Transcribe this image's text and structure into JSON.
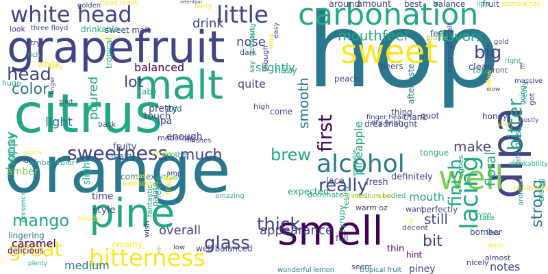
{
  "palette": {
    "deep_purple": "#440154",
    "indigo": "#414487",
    "blue": "#2a788e",
    "teal": "#22a884",
    "green": "#7ad151",
    "yellow": "#fde725",
    "slate": "#355f8d"
  },
  "words": [
    {
      "text": "hop"
    },
    {
      "text": "grapefruit"
    },
    {
      "text": "citrus"
    },
    {
      "text": "orange"
    },
    {
      "text": "malt"
    },
    {
      "text": "carbonation"
    },
    {
      "text": "sweet"
    },
    {
      "text": "pine"
    },
    {
      "text": "smell"
    },
    {
      "text": "dipa"
    },
    {
      "text": "well"
    },
    {
      "text": "alcohol"
    },
    {
      "text": "bitterness"
    },
    {
      "text": "sweetness"
    },
    {
      "text": "white head"
    },
    {
      "text": "little"
    },
    {
      "text": "head"
    },
    {
      "text": "lacing"
    },
    {
      "text": "bitter"
    },
    {
      "text": "finish"
    },
    {
      "text": "mango"
    },
    {
      "text": "thick"
    },
    {
      "text": "glass"
    },
    {
      "text": "great"
    },
    {
      "text": "really"
    },
    {
      "text": "big"
    },
    {
      "text": "mouthfeel"
    },
    {
      "text": "flavors"
    },
    {
      "text": "floral"
    },
    {
      "text": "strong"
    },
    {
      "text": "color"
    },
    {
      "text": "lot"
    },
    {
      "text": "much"
    },
    {
      "text": "first"
    },
    {
      "text": "smooth"
    },
    {
      "text": "brew"
    },
    {
      "text": "make"
    },
    {
      "text": "drink"
    },
    {
      "text": "nose"
    },
    {
      "text": "balanced"
    },
    {
      "text": "slightly"
    },
    {
      "text": "light"
    },
    {
      "text": "poured"
    },
    {
      "text": "hoppy"
    },
    {
      "text": "sticky"
    },
    {
      "text": "amber"
    },
    {
      "text": "overall"
    },
    {
      "text": "appearance"
    },
    {
      "text": "bit"
    },
    {
      "text": "still"
    },
    {
      "text": "caramel"
    },
    {
      "text": "medium"
    },
    {
      "text": "notes"
    },
    {
      "text": "pineapple"
    },
    {
      "text": "quite"
    },
    {
      "text": "mouth"
    },
    {
      "text": "time"
    },
    {
      "text": "style"
    },
    {
      "text": "slight"
    },
    {
      "text": "ipa"
    },
    {
      "text": "enough"
    },
    {
      "text": "fruity"
    },
    {
      "text": "definitely"
    },
    {
      "text": "lace"
    },
    {
      "text": "fresh"
    },
    {
      "text": "piney"
    },
    {
      "text": "full"
    },
    {
      "text": "thin"
    },
    {
      "text": "hint"
    },
    {
      "text": "bomber"
    },
    {
      "text": "malty"
    },
    {
      "text": "complex"
    },
    {
      "text": "amazing"
    },
    {
      "text": "delicious"
    },
    {
      "text": "creamy"
    },
    {
      "text": "lingering"
    },
    {
      "text": "well balanced"
    },
    {
      "text": "tropical fruit"
    },
    {
      "text": "lemon"
    },
    {
      "text": "wonderful"
    },
    {
      "text": "pretty"
    },
    {
      "text": "touch"
    },
    {
      "text": "sweet malt"
    },
    {
      "text": "three floyd"
    },
    {
      "text": "drinkable"
    },
    {
      "text": "tropical"
    },
    {
      "text": "white"
    },
    {
      "text": "look"
    },
    {
      "text": "try"
    },
    {
      "text": "rich"
    },
    {
      "text": "huge"
    },
    {
      "text": "fluffy"
    },
    {
      "text": "start"
    },
    {
      "text": "abv"
    },
    {
      "text": "end"
    },
    {
      "text": "peach"
    },
    {
      "text": "dark"
    },
    {
      "text": "long"
    },
    {
      "text": "hazy"
    },
    {
      "text": "around"
    },
    {
      "text": "amount"
    },
    {
      "text": "best"
    },
    {
      "text": "balance"
    },
    {
      "text": "fruit"
    },
    {
      "text": "feel"
    },
    {
      "text": "beers"
    },
    {
      "text": "clear"
    },
    {
      "text": "front"
    },
    {
      "text": "honey"
    },
    {
      "text": "quot"
    },
    {
      "text": "thank"
    },
    {
      "text": "thing"
    },
    {
      "text": "top"
    },
    {
      "text": "aftertaste"
    },
    {
      "text": "caramel malt"
    },
    {
      "text": "finger head"
    },
    {
      "text": "dry finish"
    },
    {
      "text": "dreadnaught"
    },
    {
      "text": "tongue"
    },
    {
      "text": "come"
    },
    {
      "text": "high"
    },
    {
      "text": "vanilla"
    },
    {
      "text": "moderate"
    },
    {
      "text": "finishes"
    },
    {
      "text": "last"
    },
    {
      "text": "back"
    },
    {
      "text": "dry"
    },
    {
      "text": "yet"
    },
    {
      "text": "amber color"
    },
    {
      "text": "overly"
    },
    {
      "text": "another"
    },
    {
      "text": "amp"
    },
    {
      "text": "awesome"
    },
    {
      "text": "citrusy"
    },
    {
      "text": "way"
    },
    {
      "text": "palate"
    },
    {
      "text": "fantastic"
    },
    {
      "text": "leave"
    },
    {
      "text": "trade"
    },
    {
      "text": "cloudy"
    },
    {
      "text": "presence"
    },
    {
      "text": "plenty"
    },
    {
      "text": "low"
    },
    {
      "text": "wish"
    },
    {
      "text": "sip"
    },
    {
      "text": "expected"
    },
    {
      "text": "medium bodied"
    },
    {
      "text": "golden orange"
    },
    {
      "text": "dominate"
    },
    {
      "text": "enjoyable"
    },
    {
      "text": "warm oz"
    },
    {
      "text": "resiny"
    },
    {
      "text": "syrupy"
    },
    {
      "text": "seem"
    },
    {
      "text": "nicely"
    },
    {
      "text": "almost"
    },
    {
      "text": "body"
    },
    {
      "text": "less"
    },
    {
      "text": "take"
    },
    {
      "text": "even"
    },
    {
      "text": "decent"
    },
    {
      "text": "want"
    },
    {
      "text": "perfectly"
    },
    {
      "text": "crisp"
    },
    {
      "text": "resinous"
    },
    {
      "text": "pint glass"
    },
    {
      "text": "drinkability"
    },
    {
      "text": "aromas"
    },
    {
      "text": "goes"
    },
    {
      "text": "along"
    },
    {
      "text": "heavy"
    },
    {
      "text": "going"
    },
    {
      "text": "got"
    },
    {
      "text": "side"
    },
    {
      "text": "mostly"
    },
    {
      "text": "wow"
    },
    {
      "text": "yellow"
    },
    {
      "text": "right"
    },
    {
      "text": "fff"
    },
    {
      "text": "massive"
    },
    {
      "text": "somewhat"
    },
    {
      "text": "iipa"
    },
    {
      "text": "gold"
    },
    {
      "text": "profile"
    },
    {
      "text": "easy"
    },
    {
      "text": "solid"
    },
    {
      "text": "without"
    },
    {
      "text": "say"
    },
    {
      "text": "though"
    },
    {
      "text": "golden"
    },
    {
      "text": "head leave"
    },
    {
      "text": "fairly"
    },
    {
      "text": "juicy"
    },
    {
      "text": "retention"
    },
    {
      "text": "finger"
    }
  ]
}
